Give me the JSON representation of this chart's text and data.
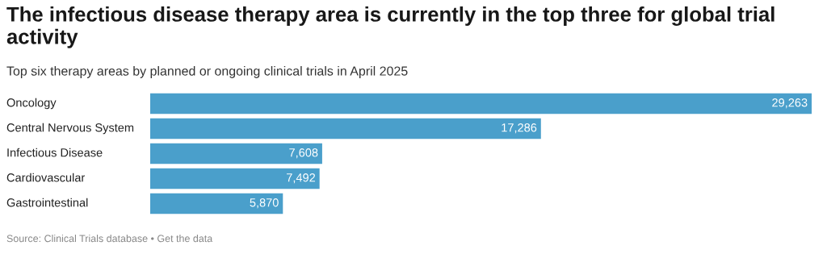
{
  "chart_data": {
    "type": "bar",
    "orientation": "horizontal",
    "title": "The infectious disease therapy area is currently in the top three for global trial activity",
    "subtitle": "Top six therapy areas by planned or ongoing clinical trials in April 2025",
    "categories": [
      "Oncology",
      "Central Nervous System",
      "Infectious Disease",
      "Cardiovascular",
      "Gastrointestinal"
    ],
    "values": [
      29263,
      17286,
      7608,
      7492,
      5870
    ],
    "color": "#4a9fcb",
    "data_labels": true,
    "value_labels": [
      "29,263",
      "17,286",
      "7,608",
      "7,492",
      "5,870"
    ],
    "xlim": [
      0,
      29263
    ],
    "annotations": [
      "Source: Clinical Trials database • Get the data"
    ]
  }
}
